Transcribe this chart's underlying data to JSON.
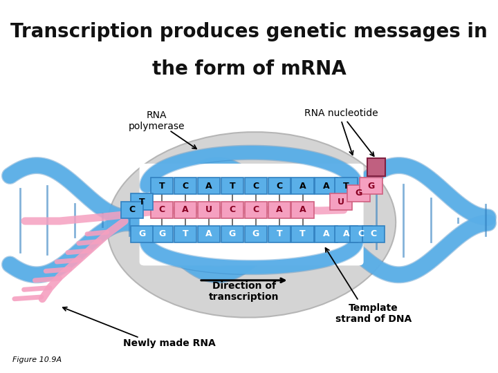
{
  "title_line1": "Transcription produces genetic messages in",
  "title_line2": "the form of mRNA",
  "title_bg_color": "#F5C48A",
  "title_text_color": "#111111",
  "body_bg_color": "#FFFFFF",
  "title_fontsize": 20,
  "label_fontsize": 10,
  "small_fontsize": 8,
  "labels": {
    "rna_polymerase": "RNA\npolymerase",
    "rna_nucleotide": "RNA nucleotide",
    "direction": "Direction of\ntranscription",
    "template_strand": "Template\nstrand of DNA",
    "newly_made_rna": "Newly made RNA",
    "figure": "Figure 10.9A"
  },
  "blue_color": "#5AAFE8",
  "blue_dark": "#3080C0",
  "pink_color": "#F5A0C0",
  "pink_dark": "#D06080",
  "gray_blob": "#C8C8C8",
  "gray_blob_edge": "#AAAAAA",
  "white_color": "#FFFFFF",
  "top_dna": [
    "T",
    "C",
    "A",
    "T",
    "C",
    "C",
    "A",
    "A",
    "T"
  ],
  "mrna_seq": [
    "C",
    "A",
    "U",
    "C",
    "C",
    "A",
    "A",
    "U"
  ],
  "bot_dna": [
    "G",
    "T",
    "A",
    "G",
    "G",
    "T",
    "T",
    "A"
  ]
}
